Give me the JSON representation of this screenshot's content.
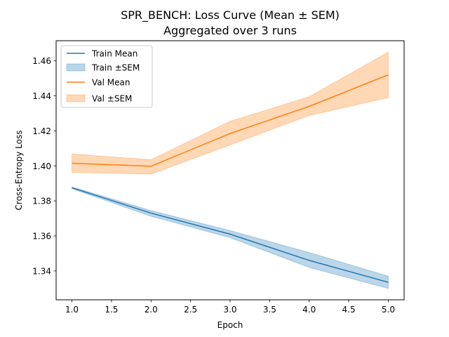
{
  "chart_data": {
    "type": "line",
    "title": "SPR_BENCH: Loss Curve (Mean ± SEM)",
    "subtitle": "Aggregated over 3 runs",
    "xlabel": "Epoch",
    "ylabel": "Cross-Entropy Loss",
    "xlim": [
      0.8,
      5.2
    ],
    "ylim": [
      1.3235,
      1.4715
    ],
    "x": [
      1,
      2,
      3,
      4,
      5
    ],
    "xticks": [
      1.0,
      1.5,
      2.0,
      2.5,
      3.0,
      3.5,
      4.0,
      4.5,
      5.0
    ],
    "xtick_labels": [
      "1.0",
      "1.5",
      "2.0",
      "2.5",
      "3.0",
      "3.5",
      "4.0",
      "4.5",
      "5.0"
    ],
    "yticks": [
      1.34,
      1.36,
      1.38,
      1.4,
      1.42,
      1.44,
      1.46
    ],
    "ytick_labels": [
      "1.34",
      "1.36",
      "1.38",
      "1.40",
      "1.42",
      "1.44",
      "1.46"
    ],
    "grid": false,
    "legend_position": "upper-left",
    "series": [
      {
        "name": "Train Mean",
        "band_name": "Train ±SEM",
        "color": "#1f77b4",
        "mean": [
          1.3875,
          1.373,
          1.361,
          1.346,
          1.3335
        ],
        "lower": [
          1.387,
          1.3712,
          1.359,
          1.342,
          1.33
        ],
        "upper": [
          1.388,
          1.3745,
          1.363,
          1.3505,
          1.337
        ]
      },
      {
        "name": "Val Mean",
        "band_name": "Val ±SEM",
        "color": "#ff7f0e",
        "mean": [
          1.4015,
          1.3998,
          1.4185,
          1.434,
          1.452
        ],
        "lower": [
          1.3963,
          1.3953,
          1.412,
          1.4288,
          1.439
        ],
        "upper": [
          1.4068,
          1.4035,
          1.4255,
          1.4395,
          1.465
        ]
      }
    ]
  }
}
